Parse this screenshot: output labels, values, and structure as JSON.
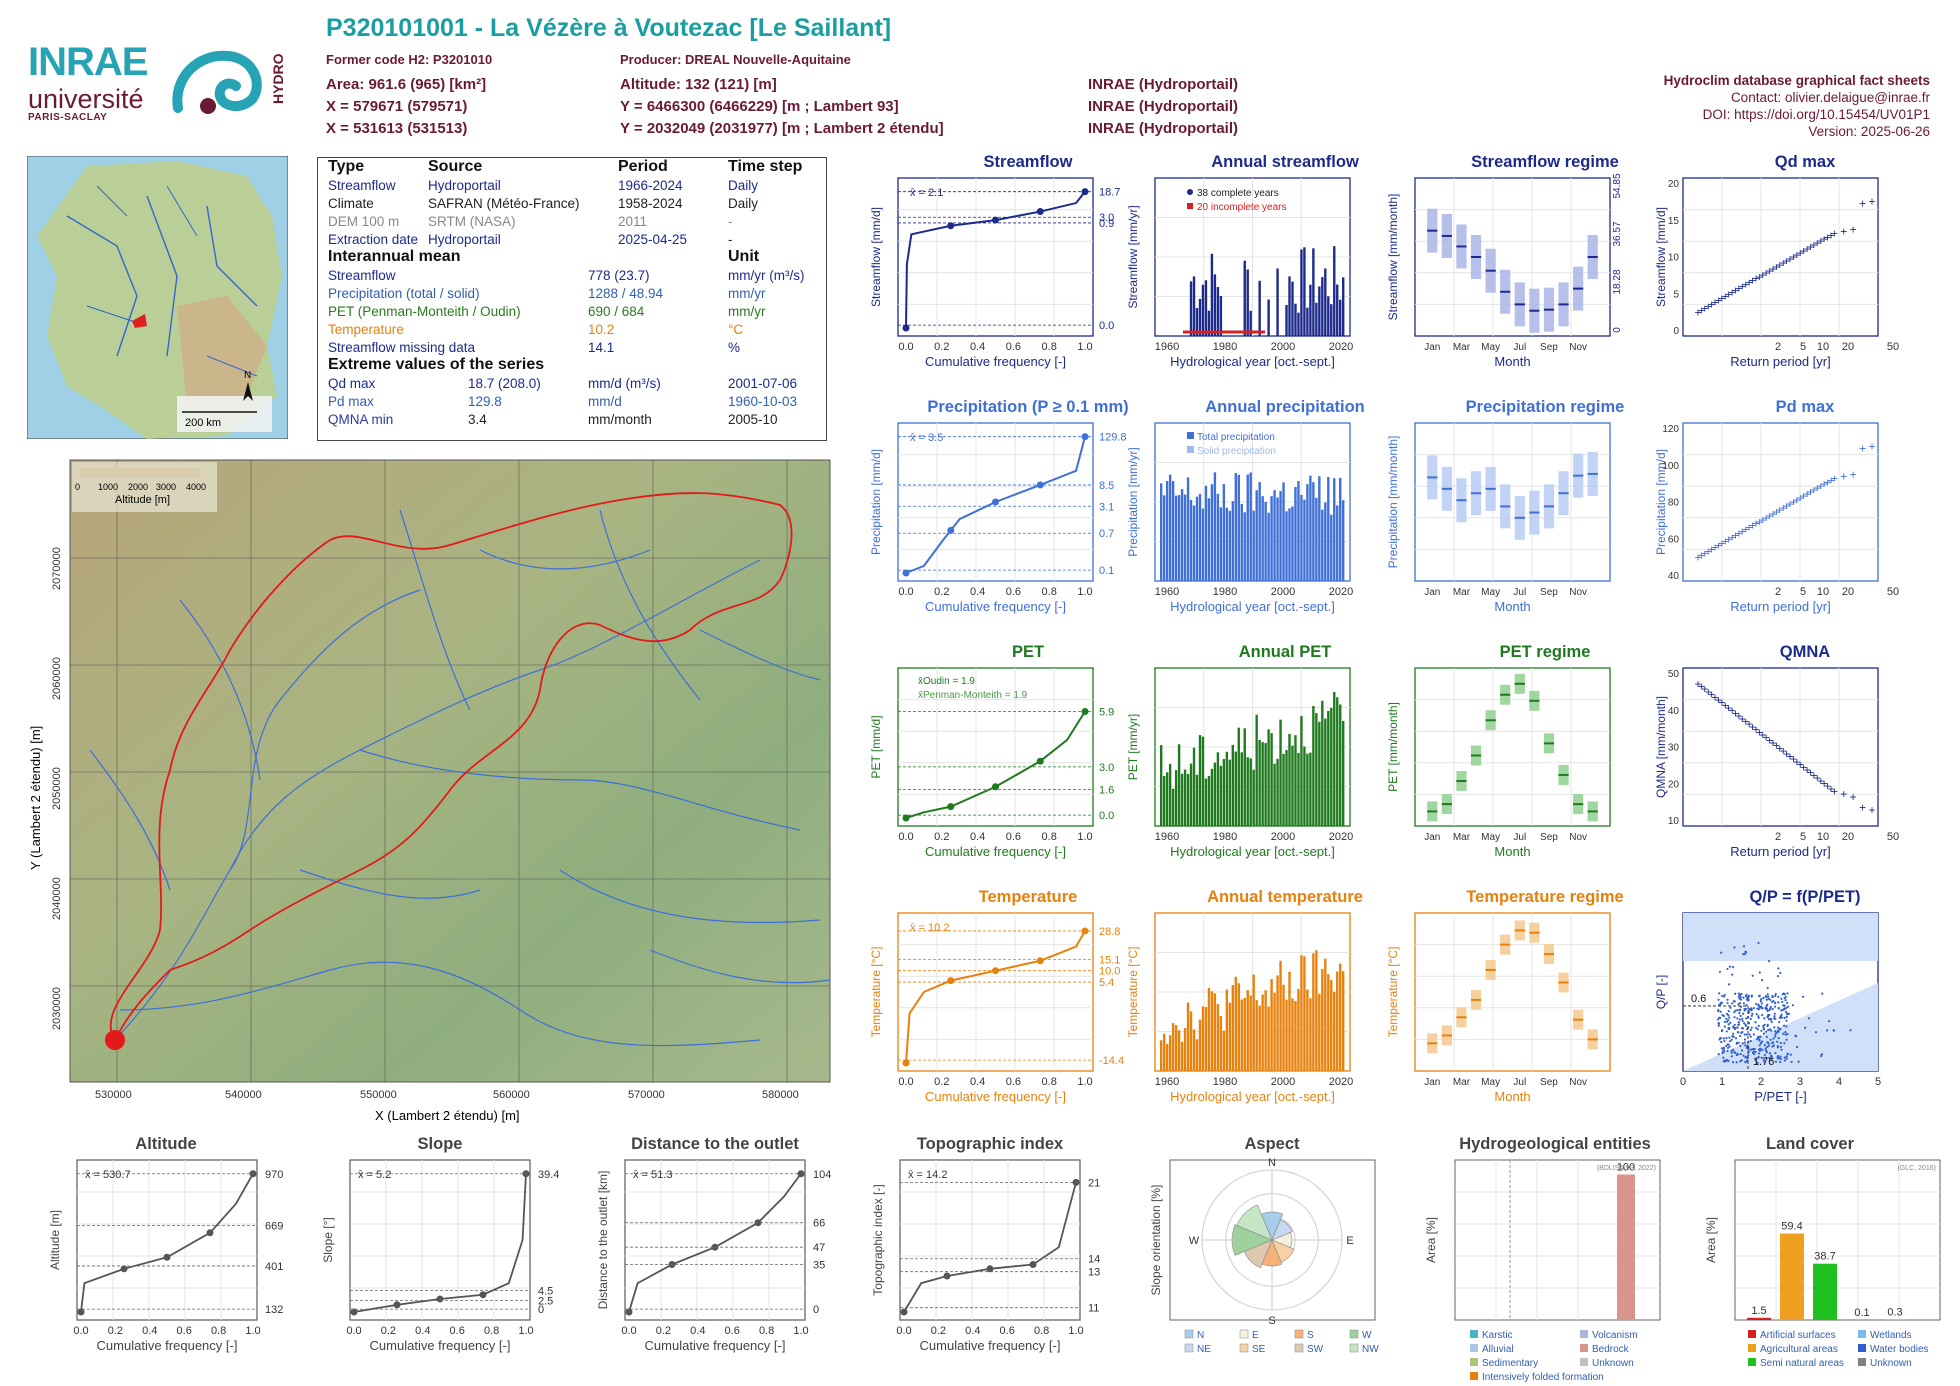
{
  "header": {
    "title": "P320101001 - La Vézère à Voutezac [Le Saillant]",
    "former_code": "Former code H2: P3201010",
    "producer": "Producer: DREAL Nouvelle-Aquitaine",
    "area": "Area: 961.6 (965) [km²]",
    "x93": "X = 579671 (579571)",
    "x2": "X = 531613 (531513)",
    "altitude": "Altitude: 132 (121) [m]",
    "y93": "Y = 6466300 (6466229) [m ; Lambert 93]",
    "y2": "Y = 2032049 (2031977) [m ; Lambert 2 étendu]",
    "src1": "INRAE (Hydroportail)",
    "src2": "INRAE (Hydroportail)",
    "src3": "INRAE (Hydroportail)"
  },
  "meta": {
    "db": "Hydroclim database graphical fact sheets",
    "contact": "Contact: olivier.delaigue@inrae.fr",
    "doi": "DOI: https://doi.org/10.15454/UV01P1",
    "version": "Version: 2025-06-26"
  },
  "logos": {
    "inrae": "INRAE",
    "univ": "université",
    "ps": "PARIS-SACLAY",
    "hydro": "HYDRO"
  },
  "locator_map": {
    "north": "N",
    "scale": "200 km"
  },
  "info_table": {
    "headers": [
      "Type",
      "Source",
      "Period",
      "Time step"
    ],
    "rows": [
      {
        "type": "Streamflow",
        "source": "Hydroportail",
        "period": "1966-2024",
        "step": "Daily"
      },
      {
        "type": "Climate",
        "source": "SAFRAN (Météo-France)",
        "period": "1958-2024",
        "step": "Daily"
      },
      {
        "type": "DEM 100 m",
        "source": "SRTM (NASA)",
        "period": "2011",
        "step": "-"
      },
      {
        "type": "Extraction date",
        "source": "Hydroportail",
        "period": "2025-04-25",
        "step": "-"
      }
    ],
    "interannual_title": "Interannual mean",
    "unit_title": "Unit",
    "interannual": [
      {
        "label": "Streamflow",
        "value": "778 (23.7)",
        "unit": "mm/yr (m³/s)"
      },
      {
        "label": "Precipitation (total / solid)",
        "value": "1288 / 48.94",
        "unit": "mm/yr"
      },
      {
        "label": "PET (Penman-Monteith / Oudin)",
        "value": "690 / 684",
        "unit": "mm/yr"
      },
      {
        "label": "Temperature",
        "value": "10.2",
        "unit": "°C"
      },
      {
        "label": "Streamflow missing data",
        "value": "14.1",
        "unit": "%"
      }
    ],
    "extreme_title": "Extreme values of the series",
    "extremes": [
      {
        "label": "Qd max",
        "value": "18.7 (208.0)",
        "unit": "mm/d (m³/s)",
        "date": "2001-07-06"
      },
      {
        "label": "Pd max",
        "value": "129.8",
        "unit": "mm/d",
        "date": "1960-10-03"
      },
      {
        "label": "QMNA min",
        "value": "3.4",
        "unit": "mm/month",
        "date": "2005-10"
      }
    ]
  },
  "catchment_map": {
    "xlabel": "X (Lambert 2 étendu) [m]",
    "ylabel": "Y (Lambert 2 étendu) [m]",
    "xticks": [
      "530000",
      "540000",
      "550000",
      "560000",
      "570000",
      "580000"
    ],
    "yticks": [
      "2030000",
      "2040000",
      "2050000",
      "2060000",
      "2070000"
    ],
    "legend_title": "Altitude [m]",
    "legend_ticks": [
      "0",
      "1000",
      "2000",
      "3000",
      "4000"
    ]
  },
  "colors": {
    "streamflow": "#1c2a8c",
    "precip": "#3f6fd8",
    "pet": "#1f7a1f",
    "temp": "#e8810c",
    "header": "#6b1a33",
    "title": "#1a9ea2"
  },
  "panels": {
    "r1": [
      "Streamflow",
      "Annual streamflow",
      "Streamflow regime",
      "Qd max"
    ],
    "r2": [
      "Precipitation (P ≥ 0.1 mm)",
      "Annual precipitation",
      "Precipitation regime",
      "Pd max"
    ],
    "r3": [
      "PET",
      "Annual PET",
      "PET regime",
      "QMNA"
    ],
    "r4": [
      "Temperature",
      "Annual temperature",
      "Temperature regime",
      "Q/P = f(P/PET)"
    ],
    "bottom": [
      "Altitude",
      "Slope",
      "Distance to the outlet",
      "Topographic index",
      "Aspect",
      "Hydrogeological entities",
      "Land cover"
    ]
  },
  "axis_text": {
    "cumfreq": "Cumulative frequency [-]",
    "hydroyear": "Hydrological year [oct.-sept.]",
    "month": "Month",
    "retper": "Return period [yr]",
    "pet_ratio": "P/PET [-]",
    "qp": "Q/P [-]"
  },
  "chart_data": [
    {
      "type": "line",
      "title": "Streamflow",
      "ylabel": "Streamflow [mm/d]",
      "xlabel": "Cumulative frequency [-]",
      "mean_label": "x̄ = 2.1",
      "right_ticks": [
        "18.7",
        "3.0",
        "0.9",
        "0.0"
      ],
      "x": [
        0,
        0.25,
        0.5,
        0.75,
        1
      ],
      "y": [
        0.0,
        0.9,
        1.4,
        3.0,
        18.7
      ]
    },
    {
      "type": "bar",
      "title": "Annual streamflow",
      "ylabel": "Streamflow [mm/yr]",
      "legend": [
        "38 complete years",
        "20 incomplete years"
      ]
    },
    {
      "type": "bar",
      "title": "Streamflow regime",
      "ylabel": "Streamflow [mm/month]",
      "months": [
        "Jan",
        "Mar",
        "May",
        "Jul",
        "Sep",
        "Nov"
      ],
      "values": [
        100,
        95,
        85,
        75,
        62,
        42,
        30,
        24,
        25,
        30,
        45,
        75
      ],
      "right_ticks": [
        "54.85",
        "36.57",
        "18.28",
        "0"
      ]
    },
    {
      "type": "scatter",
      "title": "Qd max",
      "ylabel": "Streamflow [mm/d]",
      "xticks": [
        "2",
        "5",
        "10",
        "20",
        "50"
      ],
      "yticks": [
        "0",
        "5",
        "10",
        "15",
        "20"
      ]
    },
    {
      "type": "line",
      "title": "Precipitation (P ≥ 0.1 mm)",
      "mean_label": "x̄ = 3.5",
      "right_ticks": [
        "129.8",
        "8.5",
        "3.1",
        "0.7",
        "0.1"
      ]
    },
    {
      "type": "bar",
      "title": "Annual precipitation",
      "legend": [
        "Total precipitation",
        "Solid precipitation"
      ]
    },
    {
      "type": "bar",
      "title": "Precipitation regime",
      "values": [
        118,
        105,
        92,
        100,
        105,
        85,
        72,
        78,
        85,
        100,
        120,
        122
      ]
    },
    {
      "type": "scatter",
      "title": "Pd max",
      "yticks": [
        "40",
        "60",
        "80",
        "100",
        "120"
      ]
    },
    {
      "type": "line",
      "title": "PET",
      "legend": [
        "x̄Oudin = 1.9",
        "x̄Penman-Monteith = 1.9"
      ],
      "right_ticks": [
        "5.9",
        "3.0",
        "1.6",
        "0.0"
      ]
    },
    {
      "type": "bar",
      "title": "Annual PET"
    },
    {
      "type": "bar",
      "title": "PET regime",
      "values": [
        12,
        18,
        37,
        58,
        87,
        108,
        117,
        103,
        68,
        42,
        18,
        12
      ]
    },
    {
      "type": "scatter",
      "title": "QMNA",
      "ylabel": "QMNA [mm/month]",
      "yticks": [
        "10",
        "20",
        "30",
        "40",
        "50"
      ]
    },
    {
      "type": "line",
      "title": "Temperature",
      "mean_label": "x̄ = 10.2",
      "right_ticks": [
        "28.8",
        "15.1",
        "10.0",
        "5.4",
        "-14.4"
      ]
    },
    {
      "type": "bar",
      "title": "Annual temperature"
    },
    {
      "type": "bar",
      "title": "Temperature regime",
      "values": [
        3.5,
        4.5,
        6.8,
        9.0,
        12.8,
        16.0,
        17.8,
        17.5,
        14.8,
        11.2,
        6.5,
        4.0
      ]
    },
    {
      "type": "scatter",
      "title": "Q/P = f(P/PET)",
      "annotations": [
        "0.6",
        "1.76"
      ]
    },
    {
      "type": "line",
      "title": "Altitude",
      "mean_label": "x̄ = 530.7",
      "right_ticks": [
        "970",
        "669",
        "401",
        "132"
      ]
    },
    {
      "type": "line",
      "title": "Slope",
      "mean_label": "x̄ = 5.2",
      "right_ticks": [
        "39.4",
        "4.5",
        "2.5",
        "0"
      ]
    },
    {
      "type": "line",
      "title": "Distance to the outlet",
      "mean_label": "x̄ = 51.3",
      "right_ticks": [
        "104",
        "66",
        "47",
        "35",
        "0"
      ]
    },
    {
      "type": "line",
      "title": "Topographic index",
      "mean_label": "x̄ = 14.2",
      "right_ticks": [
        "21",
        "14",
        "13",
        "11"
      ]
    },
    {
      "type": "pie",
      "title": "Aspect",
      "legend": [
        "N",
        "E",
        "S",
        "W",
        "NE",
        "SE",
        "SW",
        "NW"
      ]
    },
    {
      "type": "bar",
      "title": "Hydrogeological entities",
      "source": "(BDLISA V3, 2022)",
      "values": [
        100
      ],
      "legend": [
        "Karstic",
        "Volcanism",
        "Alluvial",
        "Bedrock",
        "Sedimentary",
        "Unknown",
        "Intensively folded formation"
      ]
    },
    {
      "type": "bar",
      "title": "Land cover",
      "source": "(GLC, 2016)",
      "values": [
        1.5,
        59.4,
        38.7,
        0.1,
        0.3
      ],
      "legend": [
        "Artificial surfaces",
        "Wetlands",
        "Agricultural areas",
        "Water bodies",
        "Semi natural areas",
        "Unknown"
      ]
    }
  ]
}
